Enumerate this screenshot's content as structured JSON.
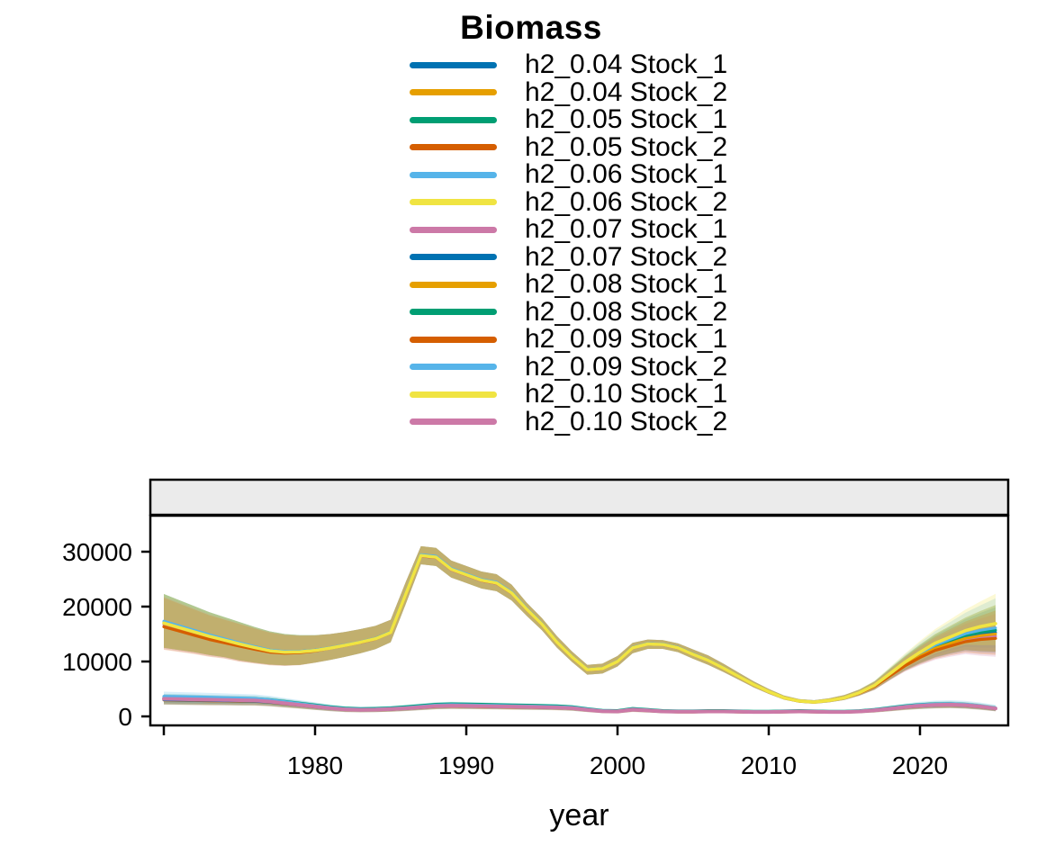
{
  "title": "Biomass",
  "x_axis": {
    "label": "year",
    "ticks": [
      {
        "year": 1970,
        "label": ""
      },
      {
        "year": 1980,
        "label": "1980"
      },
      {
        "year": 1990,
        "label": "1990"
      },
      {
        "year": 2000,
        "label": "2000"
      },
      {
        "year": 2010,
        "label": "2010"
      },
      {
        "year": 2020,
        "label": "2020"
      }
    ]
  },
  "y_axis": {
    "ticks": [
      {
        "value": 0,
        "label": "0"
      },
      {
        "value": 10000,
        "label": "10000"
      },
      {
        "value": 20000,
        "label": "20000"
      },
      {
        "value": 30000,
        "label": "30000"
      }
    ]
  },
  "strip": {
    "fill": "#EBEBEB",
    "border": "#000000"
  },
  "palette": {
    "blue": "#0072B2",
    "orange": "#E69F00",
    "green": "#009E73",
    "vermillion": "#D55E00",
    "skyblue": "#56B4E9",
    "yellow": "#F0E442",
    "pink": "#CC79A7"
  },
  "legend": {
    "items": [
      {
        "label": "h2_0.04 Stock_1",
        "color": "#0072B2"
      },
      {
        "label": "h2_0.04 Stock_2",
        "color": "#E69F00"
      },
      {
        "label": "h2_0.05 Stock_1",
        "color": "#009E73"
      },
      {
        "label": "h2_0.05 Stock_2",
        "color": "#D55E00"
      },
      {
        "label": "h2_0.06 Stock_1",
        "color": "#56B4E9"
      },
      {
        "label": "h2_0.06 Stock_2",
        "color": "#F0E442"
      },
      {
        "label": "h2_0.07 Stock_1",
        "color": "#CC79A7"
      },
      {
        "label": "h2_0.07 Stock_2",
        "color": "#0072B2"
      },
      {
        "label": "h2_0.08 Stock_1",
        "color": "#E69F00"
      },
      {
        "label": "h2_0.08 Stock_2",
        "color": "#009E73"
      },
      {
        "label": "h2_0.09 Stock_1",
        "color": "#D55E00"
      },
      {
        "label": "h2_0.09 Stock_2",
        "color": "#56B4E9"
      },
      {
        "label": "h2_0.10 Stock_1",
        "color": "#F0E442"
      },
      {
        "label": "h2_0.10 Stock_2",
        "color": "#CC79A7"
      }
    ]
  },
  "chart_data": {
    "type": "line",
    "title": "Biomass",
    "xlabel": "year",
    "ylabel": "",
    "legend_position": "top",
    "grid": false,
    "x_range": [
      1970,
      2025
    ],
    "ylim": [
      0,
      36500
    ],
    "x_tick_values": [
      1970,
      1980,
      1990,
      2000,
      2010,
      2020
    ],
    "y_tick_values": [
      0,
      10000,
      20000,
      30000
    ],
    "years": [
      1970,
      1971,
      1972,
      1973,
      1974,
      1975,
      1976,
      1977,
      1978,
      1979,
      1980,
      1981,
      1982,
      1983,
      1984,
      1985,
      1986,
      1987,
      1988,
      1989,
      1990,
      1991,
      1992,
      1993,
      1994,
      1995,
      1996,
      1997,
      1998,
      1999,
      2000,
      2001,
      2002,
      2003,
      2004,
      2005,
      2006,
      2007,
      2008,
      2009,
      2010,
      2011,
      2012,
      2013,
      2014,
      2015,
      2016,
      2017,
      2018,
      2019,
      2020,
      2021,
      2022,
      2023,
      2024,
      2025
    ],
    "groups": {
      "Stock_1": {
        "median": [
          17000,
          16200,
          15400,
          14600,
          13900,
          13200,
          12550,
          11950,
          11700,
          11750,
          12000,
          12450,
          12950,
          13500,
          14150,
          15300,
          22300,
          29300,
          29000,
          26800,
          25800,
          24800,
          24300,
          22500,
          19500,
          16800,
          13500,
          10800,
          8500,
          8700,
          10000,
          12500,
          13200,
          13100,
          12500,
          11300,
          10200,
          8800,
          7300,
          5800,
          4500,
          3400,
          2800,
          2600,
          2900,
          3400,
          4300,
          5600,
          7600,
          9600,
          11300,
          12800,
          13800,
          14800,
          15400,
          15800
        ],
        "lo": [
          12500,
          12100,
          11700,
          11200,
          10800,
          10200,
          9800,
          9450,
          9300,
          9400,
          9800,
          10300,
          10850,
          11500,
          12250,
          13500,
          20500,
          27700,
          27400,
          25300,
          24300,
          23300,
          22800,
          21100,
          18300,
          15700,
          12500,
          9900,
          7600,
          7800,
          9100,
          11500,
          12300,
          12300,
          11700,
          10500,
          9400,
          8100,
          6700,
          5300,
          4100,
          3050,
          2500,
          2300,
          2550,
          3000,
          3800,
          4900,
          6700,
          8400,
          9700,
          10800,
          11500,
          12100,
          11900,
          11800
        ],
        "hi": [
          22300,
          21200,
          20100,
          19000,
          18100,
          17200,
          16300,
          15500,
          15000,
          14800,
          14800,
          15000,
          15400,
          15900,
          16500,
          17600,
          24500,
          31000,
          30700,
          28400,
          27400,
          26400,
          25900,
          24000,
          20700,
          17900,
          14600,
          11800,
          9400,
          9600,
          11000,
          13400,
          14000,
          13900,
          13300,
          12200,
          11100,
          9600,
          8000,
          6400,
          5000,
          3800,
          3150,
          2950,
          3300,
          3900,
          4900,
          6400,
          8700,
          11000,
          13100,
          15000,
          16500,
          18000,
          19200,
          20300
        ]
      },
      "Stock_2": {
        "median": [
          3200,
          3150,
          3100,
          3050,
          3000,
          2950,
          2900,
          2700,
          2400,
          2100,
          1800,
          1500,
          1280,
          1200,
          1230,
          1320,
          1480,
          1680,
          1880,
          1950,
          1920,
          1870,
          1820,
          1780,
          1730,
          1680,
          1620,
          1500,
          1200,
          950,
          900,
          1230,
          1080,
          900,
          850,
          850,
          900,
          900,
          850,
          800,
          800,
          850,
          900,
          850,
          800,
          800,
          900,
          1100,
          1400,
          1700,
          1950,
          2100,
          2150,
          2050,
          1800,
          1450
        ],
        "lo": [
          2400,
          2360,
          2330,
          2300,
          2270,
          2230,
          2200,
          2050,
          1800,
          1550,
          1300,
          1050,
          880,
          820,
          850,
          930,
          1070,
          1250,
          1430,
          1500,
          1480,
          1440,
          1400,
          1370,
          1330,
          1290,
          1240,
          1130,
          870,
          650,
          610,
          900,
          780,
          620,
          580,
          580,
          620,
          620,
          580,
          540,
          540,
          580,
          620,
          580,
          540,
          540,
          620,
          780,
          1020,
          1280,
          1480,
          1600,
          1650,
          1550,
          1330,
          1020
        ],
        "hi": [
          4100,
          4030,
          3960,
          3890,
          3820,
          3750,
          3680,
          3440,
          3080,
          2720,
          2360,
          2000,
          1730,
          1640,
          1670,
          1780,
          1960,
          2180,
          2400,
          2470,
          2430,
          2370,
          2310,
          2260,
          2200,
          2140,
          2070,
          1930,
          1580,
          1290,
          1230,
          1600,
          1430,
          1220,
          1160,
          1160,
          1220,
          1220,
          1160,
          1100,
          1100,
          1160,
          1220,
          1160,
          1100,
          1100,
          1220,
          1460,
          1820,
          2160,
          2450,
          2630,
          2690,
          2580,
          2300,
          1920
        ]
      }
    },
    "series": [
      {
        "name": "h2_0.04 Stock_1",
        "color": "#0072B2",
        "group": "Stock_1",
        "lw": 3,
        "line_mult": {
          "s": 1.015,
          "m": 1.004,
          "e": 0.97
        },
        "ribbon_mult": {
          "s": 1.0,
          "m": 1.0,
          "e": 0.98
        }
      },
      {
        "name": "h2_0.04 Stock_2",
        "color": "#E69F00",
        "group": "Stock_2",
        "lw": 3,
        "line_mult": {
          "s": 1.0,
          "m": 1.0,
          "e": 1.0
        },
        "ribbon_mult": {
          "s": 0.92,
          "m": 0.95,
          "e": 0.95
        }
      },
      {
        "name": "h2_0.05 Stock_1",
        "color": "#009E73",
        "group": "Stock_1",
        "lw": 3,
        "line_mult": {
          "s": 1.0,
          "m": 1.002,
          "e": 0.995
        },
        "ribbon_mult": {
          "s": 1.0,
          "m": 1.0,
          "e": 1.0
        }
      },
      {
        "name": "h2_0.05 Stock_2",
        "color": "#D55E00",
        "group": "Stock_2",
        "lw": 3,
        "line_mult": {
          "s": 0.93,
          "m": 0.95,
          "e": 0.95
        },
        "ribbon_mult": {
          "s": 0.88,
          "m": 0.9,
          "e": 0.9
        }
      },
      {
        "name": "h2_0.06 Stock_1",
        "color": "#56B4E9",
        "group": "Stock_1",
        "lw": 3,
        "line_mult": {
          "s": 1.02,
          "m": 1.006,
          "e": 1.02
        },
        "ribbon_mult": {
          "s": 1.0,
          "m": 1.0,
          "e": 1.06
        }
      },
      {
        "name": "h2_0.06 Stock_2",
        "color": "#F0E442",
        "group": "Stock_2",
        "lw": 3,
        "line_mult": {
          "s": 1.03,
          "m": 1.05,
          "e": 1.02
        },
        "ribbon_mult": {
          "s": 0.95,
          "m": 0.95,
          "e": 1.0
        }
      },
      {
        "name": "h2_0.07 Stock_1",
        "color": "#CC79A7",
        "group": "Stock_1",
        "lw": 3,
        "line_mult": {
          "s": 0.985,
          "m": 0.996,
          "e": 0.925
        },
        "ribbon_mult": {
          "s": 0.98,
          "m": 1.0,
          "e": 0.92
        }
      },
      {
        "name": "h2_0.07 Stock_2",
        "color": "#0072B2",
        "group": "Stock_2",
        "lw": 3,
        "line_mult": {
          "s": 0.95,
          "m": 0.97,
          "e": 0.97
        },
        "ribbon_mult": {
          "s": 0.9,
          "m": 0.92,
          "e": 0.92
        }
      },
      {
        "name": "h2_0.08 Stock_1",
        "color": "#E69F00",
        "group": "Stock_1",
        "lw": 3,
        "line_mult": {
          "s": 0.995,
          "m": 1.0,
          "e": 0.95
        },
        "ribbon_mult": {
          "s": 1.0,
          "m": 1.0,
          "e": 1.0
        }
      },
      {
        "name": "h2_0.08 Stock_2",
        "color": "#009E73",
        "group": "Stock_2",
        "lw": 3,
        "line_mult": {
          "s": 1.08,
          "m": 1.18,
          "e": 1.05
        },
        "ribbon_mult": {
          "s": 1.0,
          "m": 1.05,
          "e": 1.0
        }
      },
      {
        "name": "h2_0.09 Stock_1",
        "color": "#D55E00",
        "group": "Stock_1",
        "lw": 3.2,
        "line_mult": {
          "s": 0.96,
          "m": 0.998,
          "e": 0.9
        },
        "ribbon_mult": {
          "s": 0.97,
          "m": 1.0,
          "e": 0.95
        }
      },
      {
        "name": "h2_0.09 Stock_2",
        "color": "#56B4E9",
        "group": "Stock_2",
        "lw": 3,
        "line_mult": {
          "s": 1.15,
          "m": 1.1,
          "e": 1.08
        },
        "ribbon_mult": {
          "s": 1.1,
          "m": 1.08,
          "e": 1.1
        }
      },
      {
        "name": "h2_0.10 Stock_1",
        "color": "#F0E442",
        "group": "Stock_1",
        "lw": 3.5,
        "line_mult": {
          "s": 1.0,
          "m": 1.0,
          "e": 1.07
        },
        "ribbon_mult": {
          "s": 1.0,
          "m": 1.0,
          "e": 1.1
        }
      },
      {
        "name": "h2_0.10 Stock_2",
        "color": "#CC79A7",
        "group": "Stock_2",
        "lw": 4,
        "line_mult": {
          "s": 1.0,
          "m": 1.0,
          "e": 1.0
        },
        "ribbon_mult": {
          "s": 0.97,
          "m": 0.97,
          "e": 0.97
        }
      }
    ]
  }
}
